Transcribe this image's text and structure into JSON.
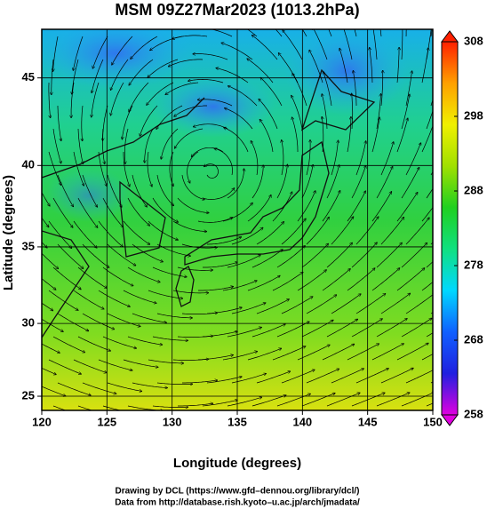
{
  "chart_data": {
    "type": "map",
    "title": "MSM 09Z27Mar2023 (1013.2hPa)",
    "xlabel": "Longitude (degrees)",
    "ylabel": "Latitude  (degrees)",
    "xlim": [
      120,
      150
    ],
    "ylim": [
      24,
      47.6
    ],
    "xticks": [
      120,
      125,
      130,
      135,
      140,
      145,
      150
    ],
    "yticks": [
      25,
      30,
      35,
      40,
      45
    ],
    "projection": "mercator",
    "grid": true,
    "colorbar": {
      "lim": [
        258,
        308
      ],
      "ticks": [
        258,
        268,
        278,
        288,
        298,
        308
      ],
      "colors": [
        "#e000e0",
        "#2020e0",
        "#1060ff",
        "#00d8ff",
        "#10e080",
        "#20d020",
        "#a0e000",
        "#f0f000",
        "#ffa000",
        "#ff2000"
      ]
    },
    "credits": [
      "Drawing by DCL (https://www.gfd–dennou.org/library/dcl/)",
      "Data from http://database.rish.kyoto–u.ac.jp/arch/jmadata/"
    ]
  }
}
